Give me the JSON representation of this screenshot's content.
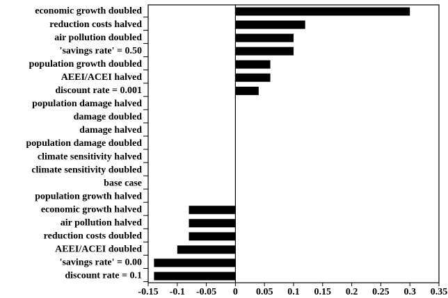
{
  "chart_data": {
    "type": "barh",
    "categories": [
      "economic growth doubled",
      "reduction costs halved",
      "air pollution doubled",
      "'savings rate' = 0.50",
      "population growth doubled",
      "AEEI/ACEI halved",
      "discount rate = 0.001",
      "population damage halved",
      "damage doubled",
      "damage halved",
      "population damage doubled",
      "climate sensitivity halved",
      "climate sensitivity doubled",
      "base case",
      "population growth halved",
      "economic growth halved",
      "air pollution halved",
      "reduction costs doubled",
      "AEEI/ACEI doubled",
      "'savings rate' = 0.00",
      "discount rate = 0.1"
    ],
    "values": [
      0.3,
      0.12,
      0.1,
      0.1,
      0.06,
      0.06,
      0.04,
      0,
      0,
      0,
      0,
      0,
      0,
      0,
      0,
      -0.08,
      -0.08,
      -0.08,
      -0.1,
      -0.14,
      -0.14
    ],
    "color": "#000000",
    "xlim": [
      -0.15,
      0.35
    ],
    "xticks": [
      -0.15,
      -0.1,
      -0.05,
      0,
      0.05,
      0.1,
      0.15,
      0.2,
      0.25,
      0.3,
      0.35
    ]
  }
}
